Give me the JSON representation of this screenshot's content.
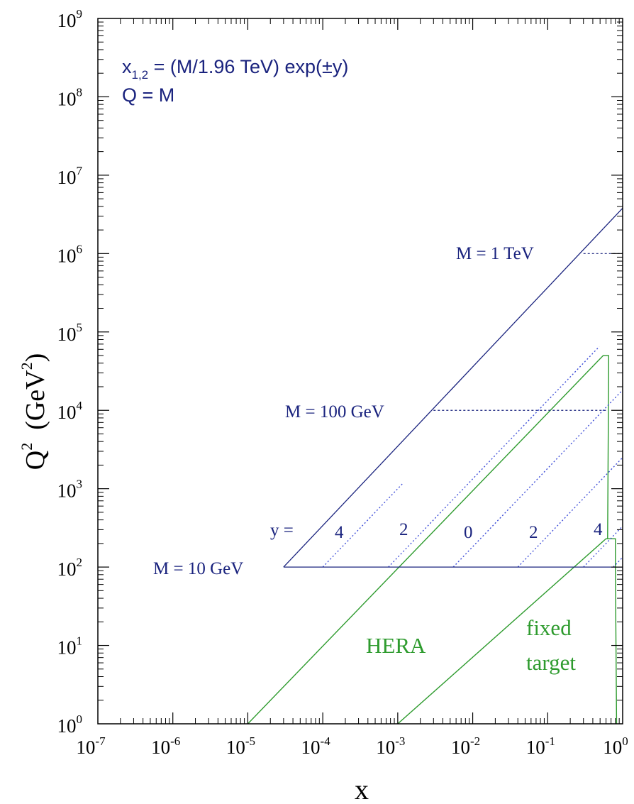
{
  "colors": {
    "axis": "#000000",
    "kinematics": "#1a237e",
    "rapidity": "#3f4fd8",
    "hera": "#2e9b2e",
    "fixed_target": "#2e9b2e"
  },
  "chart_data": {
    "type": "line",
    "xscale": "log",
    "yscale": "log",
    "xlim": [
      1e-07,
      1
    ],
    "ylim": [
      1,
      1000000000.0
    ],
    "xlabel": "x",
    "ylabel": "Q² (GeV²)",
    "ylabel_parts": {
      "q": "Q",
      "q_exp": "2",
      "unit_open": "(GeV",
      "unit_exp": "2",
      "unit_close": ")"
    },
    "grid": false,
    "x_ticks": [
      {
        "value": 1e-07,
        "base": "10",
        "exp": "-7"
      },
      {
        "value": 1e-06,
        "base": "10",
        "exp": "-6"
      },
      {
        "value": 1e-05,
        "base": "10",
        "exp": "-5"
      },
      {
        "value": 0.0001,
        "base": "10",
        "exp": "-4"
      },
      {
        "value": 0.001,
        "base": "10",
        "exp": "-3"
      },
      {
        "value": 0.01,
        "base": "10",
        "exp": "-2"
      },
      {
        "value": 0.1,
        "base": "10",
        "exp": "-1"
      },
      {
        "value": 1,
        "base": "10",
        "exp": "0"
      }
    ],
    "y_ticks": [
      {
        "value": 1,
        "base": "10",
        "exp": "0"
      },
      {
        "value": 10,
        "base": "10",
        "exp": "1"
      },
      {
        "value": 100,
        "base": "10",
        "exp": "2"
      },
      {
        "value": 1000,
        "base": "10",
        "exp": "3"
      },
      {
        "value": 10000,
        "base": "10",
        "exp": "4"
      },
      {
        "value": 100000,
        "base": "10",
        "exp": "5"
      },
      {
        "value": 1000000,
        "base": "10",
        "exp": "6"
      },
      {
        "value": 10000000,
        "base": "10",
        "exp": "7"
      },
      {
        "value": 100000000,
        "base": "10",
        "exp": "8"
      },
      {
        "value": 1000000000,
        "base": "10",
        "exp": "9"
      }
    ],
    "formula": {
      "line1_prefix": "x",
      "line1_sub": "1,2",
      "line1_rest": " = (M/1.96 TeV) exp(±y)",
      "line2": "Q = M"
    },
    "mass_lines": [
      {
        "label": "M = 1 TeV",
        "q2": 1000000,
        "xmin": 0.3,
        "xmax": 1
      },
      {
        "label": "M = 100 GeV",
        "q2": 10000,
        "xmin": 0.003,
        "xmax": 0.6
      },
      {
        "label": "M = 10 GeV",
        "q2": 100,
        "xmin": 3e-05,
        "xmax": 1
      }
    ],
    "upper_boundary": {
      "x": [
        3e-05,
        1
      ],
      "q2": [
        100,
        3800000
      ]
    },
    "rapidity_label_prefix": "y =",
    "rapidity_lines": [
      {
        "label": "4",
        "x_at_q2_100": 0.0001,
        "q2_end": 1200
      },
      {
        "label": "2",
        "x_at_q2_100": 0.00075,
        "q2_end": 65000
      },
      {
        "label": "0",
        "x_at_q2_100": 0.0055,
        "q2_end": 1000000
      },
      {
        "label": "2",
        "x_at_q2_100": 0.04,
        "q2_end": 1000000
      },
      {
        "label": "4",
        "x_at_q2_100": 0.3,
        "q2_end": 1000000
      },
      {
        "label": "",
        "x_at_q2_100": 0.75,
        "q2_end": 1000000
      }
    ],
    "regions": [
      {
        "name": "HERA",
        "label": "HERA",
        "x": [
          1e-05,
          0.55,
          0.65,
          0.65,
          0.63
        ],
        "q2": [
          1,
          50000,
          50000,
          30000,
          230
        ]
      },
      {
        "name": "fixed target",
        "label_line1": "fixed",
        "label_line2": "target",
        "x": [
          0.001,
          0.6,
          0.8,
          0.8,
          0.83
        ],
        "q2": [
          1,
          230,
          230,
          100,
          1
        ]
      }
    ]
  }
}
